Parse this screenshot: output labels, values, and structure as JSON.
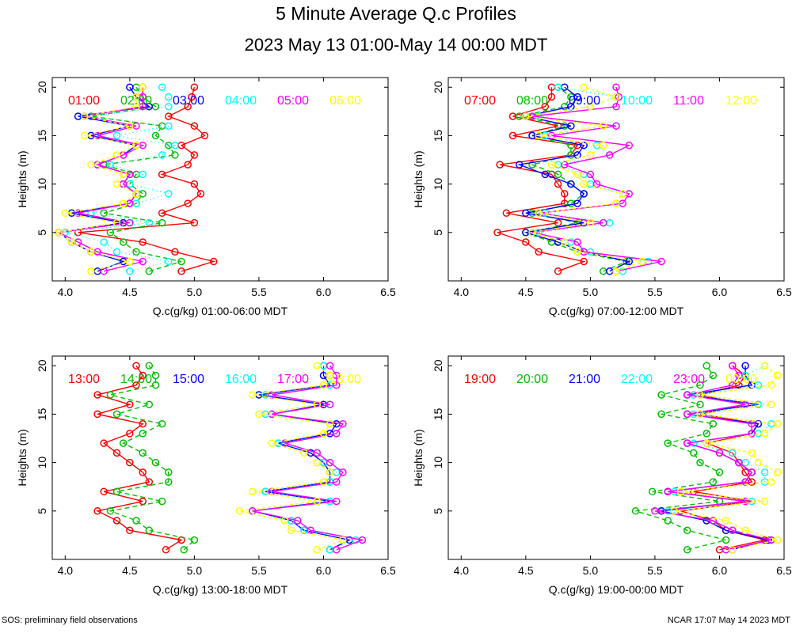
{
  "title": "5 Minute Average Q.c Profiles",
  "subtitle": "2023 May 13 01:00-May 14 00:00 MDT",
  "footer_left": "SOS: preliminary field observations",
  "footer_right": "NCAR 17:07 May 14 2023 MDT",
  "colors": [
    "#ff0000",
    "#00c000",
    "#0000ff",
    "#00ffff",
    "#ff00ff",
    "#ffff00"
  ],
  "chart_data": [
    {
      "type": "line",
      "xlabel": "Q.c(g/kg) 01:00-06:00 MDT",
      "ylabel": "Heights (m)",
      "xlim": [
        3.9,
        6.5
      ],
      "ylim": [
        0,
        21
      ],
      "xticks": [
        "4.0",
        "4.5",
        "5.0",
        "5.5",
        "6.0",
        "6.5"
      ],
      "yticks": [
        "5",
        "10",
        "15",
        "20"
      ],
      "heights": [
        1,
        2,
        3,
        4,
        5,
        6,
        7,
        8,
        9,
        10,
        11,
        12,
        13,
        14,
        15,
        16,
        17,
        18,
        19,
        20
      ],
      "series": [
        {
          "name": "01:00",
          "values": [
            4.9,
            5.15,
            4.85,
            4.6,
            4.1,
            5.0,
            4.75,
            4.95,
            5.05,
            5.0,
            4.75,
            4.95,
            5.0,
            4.9,
            5.08,
            5.0,
            4.8,
            4.95,
            4.98,
            5.0
          ]
        },
        {
          "name": "02:00",
          "values": [
            4.65,
            4.9,
            4.55,
            4.45,
            4.35,
            4.75,
            4.3,
            4.55,
            4.6,
            4.5,
            4.55,
            4.3,
            4.85,
            4.8,
            4.7,
            4.75,
            4.2,
            4.7,
            4.6,
            4.55
          ]
        },
        {
          "name": "03:00",
          "values": [
            4.25,
            4.45,
            4.2,
            4.05,
            3.95,
            4.45,
            4.05,
            4.5,
            4.55,
            4.45,
            4.5,
            4.25,
            4.45,
            4.55,
            4.2,
            4.5,
            4.1,
            4.65,
            4.55,
            4.5
          ]
        },
        {
          "name": "04:00",
          "values": [
            4.5,
            4.8,
            4.4,
            4.3,
            4.0,
            4.65,
            4.2,
            4.55,
            4.8,
            4.5,
            4.6,
            4.35,
            4.75,
            4.85,
            4.4,
            4.8,
            4.15,
            4.8,
            4.8,
            4.75
          ]
        },
        {
          "name": "05:00",
          "values": [
            4.3,
            4.6,
            4.25,
            4.1,
            3.95,
            4.5,
            4.1,
            4.5,
            4.55,
            4.45,
            4.5,
            4.25,
            4.45,
            4.6,
            4.25,
            4.55,
            4.15,
            4.6,
            4.6,
            4.6
          ]
        },
        {
          "name": "06:00",
          "values": [
            4.2,
            4.5,
            4.2,
            4.05,
            3.95,
            4.4,
            4.0,
            4.45,
            4.55,
            4.4,
            4.45,
            4.2,
            4.4,
            4.55,
            4.15,
            4.5,
            4.15,
            4.55,
            4.55,
            4.6
          ]
        }
      ]
    },
    {
      "type": "line",
      "xlabel": "Q.c(g/kg) 07:00-12:00 MDT",
      "ylabel": "Heights (m)",
      "xlim": [
        3.9,
        6.5
      ],
      "ylim": [
        0,
        21
      ],
      "xticks": [
        "4.0",
        "4.5",
        "5.0",
        "5.5",
        "6.0",
        "6.5"
      ],
      "yticks": [
        "5",
        "10",
        "15",
        "20"
      ],
      "heights": [
        1,
        2,
        3,
        4,
        5,
        6,
        7,
        8,
        9,
        10,
        11,
        12,
        13,
        14,
        15,
        16,
        17,
        18,
        19,
        20
      ],
      "series": [
        {
          "name": "07:00",
          "values": [
            4.75,
            4.95,
            4.6,
            4.5,
            4.28,
            4.75,
            4.35,
            4.8,
            4.8,
            4.75,
            4.7,
            4.3,
            4.85,
            4.9,
            4.4,
            4.75,
            4.4,
            4.65,
            4.7,
            4.7
          ]
        },
        {
          "name": "08:00",
          "values": [
            5.1,
            5.28,
            4.9,
            4.7,
            4.5,
            4.9,
            4.55,
            4.85,
            4.95,
            4.85,
            4.75,
            4.55,
            4.85,
            4.85,
            4.55,
            4.8,
            4.45,
            4.8,
            4.85,
            4.75
          ]
        },
        {
          "name": "09:00",
          "values": [
            5.15,
            5.3,
            4.95,
            4.75,
            4.5,
            4.95,
            4.5,
            4.9,
            4.95,
            4.85,
            4.65,
            4.45,
            4.9,
            4.95,
            4.55,
            4.85,
            4.5,
            4.85,
            4.9,
            4.8
          ]
        },
        {
          "name": "10:00",
          "values": [
            5.25,
            5.45,
            5.0,
            4.85,
            4.6,
            5.15,
            4.65,
            5.2,
            5.25,
            5.0,
            4.95,
            4.75,
            5.15,
            5.05,
            4.65,
            5.2,
            4.6,
            5.0,
            5.2,
            4.75
          ]
        },
        {
          "name": "11:00",
          "values": [
            5.2,
            5.55,
            4.95,
            4.9,
            4.55,
            5.1,
            4.6,
            5.25,
            5.3,
            5.05,
            5.0,
            4.8,
            5.15,
            5.3,
            4.7,
            5.2,
            4.55,
            5.2,
            5.22,
            5.2
          ]
        },
        {
          "name": "12:00",
          "values": [
            5.2,
            5.4,
            4.9,
            4.8,
            4.55,
            5.0,
            4.6,
            5.2,
            5.25,
            4.95,
            4.9,
            4.7,
            5.0,
            5.1,
            4.6,
            5.1,
            4.5,
            5.0,
            5.2,
            4.95
          ]
        }
      ]
    },
    {
      "type": "line",
      "xlabel": "Q.c(g/kg) 13:00-18:00 MDT",
      "ylabel": "Heights (m)",
      "xlim": [
        3.9,
        6.5
      ],
      "ylim": [
        0,
        21
      ],
      "xticks": [
        "4.0",
        "4.5",
        "5.0",
        "5.5",
        "6.0",
        "6.5"
      ],
      "yticks": [
        "5",
        "10",
        "15",
        "20"
      ],
      "heights": [
        1,
        2,
        3,
        4,
        5,
        6,
        7,
        8,
        9,
        10,
        11,
        12,
        13,
        14,
        15,
        16,
        17,
        18,
        19,
        20
      ],
      "series": [
        {
          "name": "13:00",
          "values": [
            4.78,
            4.9,
            4.5,
            4.4,
            4.25,
            4.6,
            4.3,
            4.65,
            4.6,
            4.5,
            4.4,
            4.3,
            4.5,
            4.6,
            4.25,
            4.5,
            4.25,
            4.55,
            4.6,
            4.55
          ]
        },
        {
          "name": "14:00",
          "values": [
            4.92,
            5.0,
            4.65,
            4.55,
            4.35,
            4.75,
            4.4,
            4.8,
            4.8,
            4.7,
            4.6,
            4.45,
            4.6,
            4.75,
            4.4,
            4.65,
            4.35,
            4.7,
            4.7,
            4.65
          ]
        },
        {
          "name": "15:00",
          "values": [
            6.05,
            6.2,
            5.85,
            5.75,
            5.45,
            6.05,
            5.55,
            6.05,
            6.05,
            6.0,
            5.9,
            5.65,
            6.05,
            6.1,
            5.6,
            6.0,
            5.5,
            6.05,
            6.0,
            6.0
          ]
        },
        {
          "name": "16:00",
          "values": [
            6.05,
            6.25,
            5.85,
            5.75,
            5.45,
            6.05,
            5.55,
            6.05,
            6.1,
            6.0,
            5.95,
            5.65,
            6.1,
            6.05,
            5.55,
            6.05,
            5.55,
            6.05,
            6.05,
            6.0
          ]
        },
        {
          "name": "17:00",
          "values": [
            6.1,
            6.3,
            5.9,
            5.8,
            5.45,
            6.1,
            5.6,
            6.1,
            6.15,
            6.05,
            5.95,
            5.7,
            6.1,
            6.15,
            5.6,
            6.05,
            5.6,
            6.1,
            6.1,
            6.05
          ]
        },
        {
          "name": "18:00",
          "values": [
            5.95,
            6.15,
            5.75,
            5.7,
            5.35,
            5.95,
            5.45,
            6.0,
            6.05,
            5.95,
            5.85,
            5.6,
            6.0,
            6.05,
            5.5,
            5.95,
            5.45,
            6.0,
            6.05,
            5.95
          ]
        }
      ]
    },
    {
      "type": "line",
      "xlabel": "Q.c(g/kg) 19:00-00:00 MDT",
      "ylabel": "Heights (m)",
      "xlim": [
        3.9,
        6.5
      ],
      "ylim": [
        0,
        21
      ],
      "xticks": [
        "4.0",
        "4.5",
        "5.0",
        "5.5",
        "6.0",
        "6.5"
      ],
      "yticks": [
        "5",
        "10",
        "15",
        "20"
      ],
      "heights": [
        1,
        2,
        3,
        4,
        5,
        6,
        7,
        8,
        9,
        10,
        11,
        12,
        13,
        14,
        15,
        16,
        17,
        18,
        19,
        20
      ],
      "series": [
        {
          "name": "19:00",
          "values": [
            6.0,
            6.35,
            6.05,
            5.95,
            5.7,
            6.25,
            5.8,
            6.25,
            6.2,
            6.15,
            6.1,
            5.9,
            6.25,
            6.3,
            5.85,
            6.2,
            5.85,
            6.15,
            6.2,
            6.1
          ]
        },
        {
          "name": "20:00",
          "values": [
            5.75,
            6.05,
            5.75,
            5.6,
            5.35,
            6.0,
            5.48,
            5.95,
            6.0,
            5.85,
            5.8,
            5.6,
            5.9,
            5.95,
            5.55,
            5.85,
            5.55,
            5.85,
            5.95,
            5.9
          ]
        },
        {
          "name": "21:00",
          "values": [
            6.1,
            6.38,
            6.05,
            5.9,
            5.55,
            6.2,
            5.6,
            6.2,
            6.25,
            6.15,
            6.0,
            5.75,
            6.25,
            6.3,
            5.75,
            6.3,
            5.75,
            6.25,
            6.2,
            6.2
          ]
        },
        {
          "name": "22:00",
          "values": [
            6.05,
            6.4,
            6.1,
            5.95,
            5.6,
            6.25,
            5.65,
            6.35,
            6.35,
            6.2,
            6.1,
            5.8,
            6.3,
            6.4,
            5.8,
            6.3,
            5.8,
            6.3,
            6.2,
            6.35
          ]
        },
        {
          "name": "23:00",
          "values": [
            6.05,
            6.4,
            6.1,
            5.95,
            5.5,
            6.2,
            5.6,
            6.2,
            6.25,
            6.15,
            6.0,
            5.75,
            6.25,
            6.25,
            5.75,
            6.2,
            5.75,
            6.1,
            6.15,
            6.1
          ]
        },
        {
          "name": "00:00",
          "values": [
            6.1,
            6.45,
            6.2,
            6.05,
            5.65,
            6.35,
            5.7,
            6.4,
            6.45,
            6.3,
            6.25,
            5.9,
            6.35,
            6.45,
            5.85,
            6.4,
            5.85,
            6.4,
            6.45,
            6.35
          ]
        }
      ]
    }
  ]
}
